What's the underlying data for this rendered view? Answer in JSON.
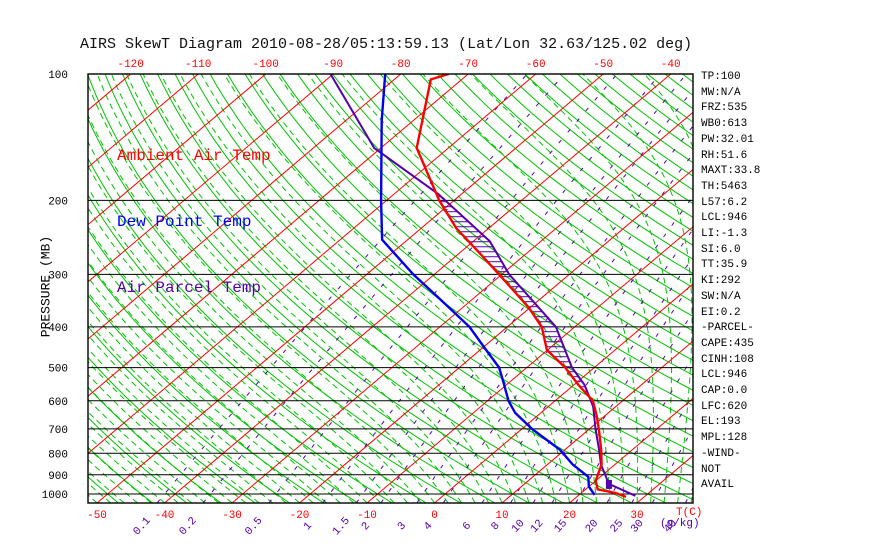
{
  "title": "AIRS SkewT Diagram 2010-08-28/05:13:59.13 (Lat/Lon 32.63/125.02 deg)",
  "legend": {
    "ambient_label": "Ambient Air Temp",
    "dew_label": "Dew Point Temp",
    "parcel_label": "Air Parcel Temp"
  },
  "axes": {
    "pressure_axis_label": "PRESSURE (MB)",
    "temp_unit_label": "T(C)",
    "mixing_unit_label": "(g/kg)"
  },
  "panel": {
    "rows": [
      "TP:100",
      "MW:N/A",
      "FRZ:535",
      "WB0:613",
      "PW:32.01",
      "RH:51.6",
      "MAXT:33.8",
      "TH:5463",
      "L57:6.2",
      "LCL:946",
      "LI:-1.3",
      "SI:6.0",
      "TT:35.9",
      "KI:292",
      "SW:N/A",
      "EI:0.2",
      "-PARCEL-",
      "CAPE:435",
      "CINH:108",
      "LCL:946",
      "CAP:0.0",
      "LFC:620",
      "EL:193",
      "MPL:128",
      "-WIND-",
      "NOT",
      "AVAIL"
    ]
  },
  "colors": {
    "isotherm_red": "#ff0000",
    "adiabat_green": "#00c300",
    "dew_blue": "#0000f0",
    "parcel_purple": "#5500aa",
    "isobar_black": "#000000"
  },
  "chart_data": {
    "type": "line",
    "chart_kind": "skew-t log-p thermodynamic diagram",
    "grid": true,
    "pressure_range_mb": [
      100,
      1050
    ],
    "isobars_mb": [
      100,
      200,
      300,
      400,
      500,
      600,
      700,
      800,
      900,
      1000
    ],
    "isotherm_step_c": 10,
    "top_temp_labels_c": [
      -120,
      -110,
      -100,
      -90,
      -80,
      -70,
      -60,
      -50,
      -40
    ],
    "bottom_temp_labels_c": [
      -50,
      -40,
      -30,
      -20,
      -10,
      0,
      10,
      20,
      30
    ],
    "dry_adiabats_theta_c": {
      "min": -50,
      "max": 190,
      "step": 5
    },
    "moist_adiabats_start_c": {
      "min": -60,
      "max": 40,
      "step": 2
    },
    "mixing_ratio_lines_g_kg": [
      0.1,
      0.2,
      0.5,
      1,
      1.5,
      2,
      3,
      4,
      6,
      8,
      10,
      12,
      15,
      20,
      25,
      30,
      40
    ],
    "series": [
      {
        "name": "Ambient Air Temp",
        "color": "#ff0000",
        "points_p_mb_t_c": [
          [
            1016,
            27.3
          ],
          [
            994,
            25.0
          ],
          [
            975,
            21.8
          ],
          [
            930,
            20.0
          ],
          [
            850,
            18.0
          ],
          [
            785,
            15.4
          ],
          [
            700,
            11.4
          ],
          [
            650,
            8.7
          ],
          [
            600,
            5.6
          ],
          [
            550,
            0.7
          ],
          [
            500,
            -4.3
          ],
          [
            454,
            -10.1
          ],
          [
            400,
            -14.9
          ],
          [
            360,
            -20.2
          ],
          [
            300,
            -30.4
          ],
          [
            267,
            -37.0
          ],
          [
            233,
            -44.8
          ],
          [
            200,
            -52.2
          ],
          [
            150,
            -64.7
          ],
          [
            103,
            -74.6
          ],
          [
            100,
            -72.9
          ]
        ]
      },
      {
        "name": "Dew Point Temp",
        "color": "#0000f0",
        "points_p_mb_t_c": [
          [
            1005,
            22.3
          ],
          [
            960,
            20.0
          ],
          [
            910,
            18.2
          ],
          [
            850,
            13.7
          ],
          [
            785,
            9.3
          ],
          [
            700,
            1.5
          ],
          [
            641,
            -3.8
          ],
          [
            600,
            -6.9
          ],
          [
            535,
            -11.4
          ],
          [
            500,
            -14.1
          ],
          [
            448,
            -19.8
          ],
          [
            400,
            -25.6
          ],
          [
            350,
            -33.7
          ],
          [
            300,
            -43.1
          ],
          [
            248,
            -53.8
          ],
          [
            200,
            -60.8
          ],
          [
            129,
            -74.7
          ],
          [
            100,
            -82.3
          ]
        ]
      },
      {
        "name": "Air Parcel Temp",
        "color": "#5500aa",
        "lcl_marker_p_mb": 946,
        "cape_hatch_between_p_mb": [
          615,
          196
        ],
        "points_p_mb_t_c": [
          [
            1010,
            28.5
          ],
          [
            946,
            22.5
          ],
          [
            850,
            17.9
          ],
          [
            785,
            15.1
          ],
          [
            700,
            10.9
          ],
          [
            620,
            6.7
          ],
          [
            550,
            1.6
          ],
          [
            500,
            -3.3
          ],
          [
            400,
            -12.8
          ],
          [
            300,
            -28.9
          ],
          [
            250,
            -37.6
          ],
          [
            193,
            -53.5
          ],
          [
            150,
            -71.0
          ],
          [
            100,
            -90.4
          ]
        ]
      }
    ]
  }
}
